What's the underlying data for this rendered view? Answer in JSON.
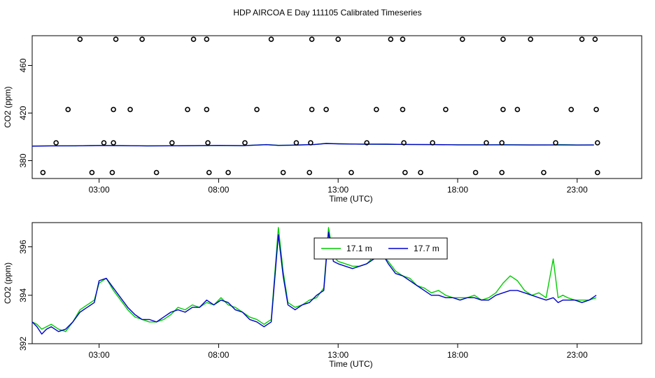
{
  "title": "HDP AIRCOA E  Day 111105  Calibrated Timeseries",
  "chart_data": [
    {
      "type": "scatter+line",
      "xlabel": "Time (UTC)",
      "ylabel": "CO2 (ppm)",
      "xlim": [
        0.2,
        25.7
      ],
      "ylim": [
        365,
        485
      ],
      "xticks": [
        3,
        8,
        13,
        18,
        23
      ],
      "xtick_labels": [
        "03:00",
        "08:00",
        "13:00",
        "18:00",
        "23:00"
      ],
      "yticks": [
        380,
        420,
        460
      ],
      "ytick_labels": [
        "380",
        "420",
        "460"
      ],
      "grid": false,
      "colors": {
        "green": "#00cc00",
        "blue": "#0000cc",
        "points": "#000000"
      },
      "points": [
        [
          2.2,
          482
        ],
        [
          3.7,
          482
        ],
        [
          4.8,
          482
        ],
        [
          6.95,
          482
        ],
        [
          7.5,
          482
        ],
        [
          10.2,
          482
        ],
        [
          11.9,
          482
        ],
        [
          13.0,
          482
        ],
        [
          15.2,
          482
        ],
        [
          15.7,
          482
        ],
        [
          18.2,
          482
        ],
        [
          19.9,
          482
        ],
        [
          21.05,
          482
        ],
        [
          23.2,
          482
        ],
        [
          23.75,
          482
        ],
        [
          1.7,
          423
        ],
        [
          3.6,
          423
        ],
        [
          4.3,
          423
        ],
        [
          6.7,
          423
        ],
        [
          7.5,
          423
        ],
        [
          9.6,
          423
        ],
        [
          11.9,
          423
        ],
        [
          12.5,
          423
        ],
        [
          14.6,
          423
        ],
        [
          15.7,
          423
        ],
        [
          17.5,
          423
        ],
        [
          19.9,
          423
        ],
        [
          20.5,
          423
        ],
        [
          22.75,
          423
        ],
        [
          23.8,
          423
        ],
        [
          1.2,
          395
        ],
        [
          3.2,
          395
        ],
        [
          3.6,
          395
        ],
        [
          6.05,
          395
        ],
        [
          7.55,
          395
        ],
        [
          9.1,
          395
        ],
        [
          11.25,
          395
        ],
        [
          11.85,
          395
        ],
        [
          14.2,
          395
        ],
        [
          15.75,
          395
        ],
        [
          16.95,
          395
        ],
        [
          19.2,
          395
        ],
        [
          19.85,
          395
        ],
        [
          22.1,
          395
        ],
        [
          23.85,
          395
        ],
        [
          0.65,
          370
        ],
        [
          2.7,
          370
        ],
        [
          3.55,
          370
        ],
        [
          5.4,
          370
        ],
        [
          7.6,
          370
        ],
        [
          8.4,
          370
        ],
        [
          10.7,
          370
        ],
        [
          11.8,
          370
        ],
        [
          13.55,
          370
        ],
        [
          15.8,
          370
        ],
        [
          16.45,
          370
        ],
        [
          18.75,
          370
        ],
        [
          19.85,
          370
        ],
        [
          21.6,
          370
        ],
        [
          23.85,
          370
        ]
      ],
      "series": [
        {
          "name": "17.1 m",
          "color": "#00cc00",
          "x": [
            0.2,
            1,
            2,
            3,
            4,
            5,
            6,
            7,
            8,
            9,
            10,
            10.5,
            11,
            12,
            12.5,
            13,
            14,
            15,
            16,
            17,
            18,
            19,
            20,
            21,
            22,
            22.3,
            23,
            23.7
          ],
          "y": [
            392.3,
            392.5,
            392.4,
            392.8,
            392.6,
            392.4,
            392.5,
            392.6,
            392.7,
            392.6,
            393.5,
            392.9,
            393.0,
            393.5,
            394.5,
            394.2,
            393.9,
            393.8,
            393.6,
            393.5,
            393.3,
            393.3,
            393.4,
            393.2,
            393.3,
            393.5,
            393.2,
            393.2
          ]
        },
        {
          "name": "17.7 m",
          "color": "#0000cc",
          "x": [
            0.2,
            1,
            2,
            3,
            4,
            5,
            6,
            7,
            8,
            9,
            10,
            10.5,
            11,
            12,
            12.5,
            13,
            14,
            15,
            16,
            17,
            18,
            19,
            20,
            21,
            22,
            22.3,
            23,
            23.7
          ],
          "y": [
            392.2,
            392.4,
            392.5,
            392.7,
            392.6,
            392.4,
            392.5,
            392.6,
            392.8,
            392.6,
            393.4,
            392.8,
            393.0,
            393.6,
            394.4,
            394.1,
            393.9,
            393.8,
            393.6,
            393.5,
            393.3,
            393.3,
            393.3,
            393.2,
            393.2,
            393.2,
            393.1,
            393.2
          ]
        }
      ]
    },
    {
      "type": "line",
      "xlabel": "Time (UTC)",
      "ylabel": "CO2 (ppm)",
      "xlim": [
        0.2,
        25.7
      ],
      "ylim": [
        392,
        397
      ],
      "xticks": [
        3,
        8,
        13,
        18,
        23
      ],
      "xtick_labels": [
        "03:00",
        "08:00",
        "13:00",
        "18:00",
        "23:00"
      ],
      "yticks": [
        392,
        394,
        396
      ],
      "ytick_labels": [
        "392",
        "394",
        "396"
      ],
      "grid": false,
      "legend": {
        "placement": "top-center"
      },
      "series": [
        {
          "name": "17.1 m",
          "color": "#00cc00",
          "x": [
            0.2,
            0.4,
            0.6,
            0.8,
            1.0,
            1.3,
            1.6,
            1.9,
            2.2,
            2.5,
            2.8,
            3.0,
            3.3,
            3.6,
            3.9,
            4.2,
            4.5,
            4.8,
            5.1,
            5.4,
            5.7,
            6.0,
            6.3,
            6.6,
            6.9,
            7.2,
            7.5,
            7.8,
            8.1,
            8.4,
            8.7,
            9.0,
            9.3,
            9.6,
            9.9,
            10.2,
            10.5,
            10.7,
            10.9,
            11.2,
            11.5,
            11.8,
            12.1,
            12.4,
            12.6,
            12.8,
            13.0,
            13.3,
            13.6,
            13.9,
            14.2,
            14.5,
            14.8,
            15.1,
            15.4,
            15.7,
            16.0,
            16.3,
            16.6,
            16.9,
            17.2,
            17.5,
            17.8,
            18.1,
            18.4,
            18.7,
            19.0,
            19.3,
            19.6,
            19.9,
            20.2,
            20.5,
            20.8,
            21.1,
            21.4,
            21.7,
            22.0,
            22.2,
            22.4,
            22.6,
            22.9,
            23.2,
            23.5,
            23.8
          ],
          "y": [
            392.9,
            392.8,
            392.6,
            392.7,
            392.8,
            392.6,
            392.5,
            392.9,
            393.4,
            393.6,
            393.8,
            394.5,
            394.7,
            394.2,
            393.8,
            393.4,
            393.1,
            393.0,
            392.9,
            392.9,
            393.0,
            393.2,
            393.5,
            393.4,
            393.6,
            393.5,
            393.7,
            393.6,
            393.9,
            393.6,
            393.5,
            393.3,
            393.1,
            393.0,
            392.8,
            393.0,
            396.8,
            395.0,
            393.7,
            393.5,
            393.6,
            393.8,
            393.9,
            394.3,
            396.8,
            395.6,
            395.4,
            395.3,
            395.2,
            395.2,
            395.3,
            395.6,
            395.7,
            395.4,
            395.0,
            394.8,
            394.7,
            394.4,
            394.3,
            394.1,
            394.2,
            394.0,
            393.9,
            393.9,
            393.9,
            394.0,
            393.8,
            393.9,
            394.1,
            394.5,
            394.8,
            394.6,
            394.2,
            394.0,
            394.1,
            393.9,
            395.5,
            393.9,
            394.0,
            393.9,
            393.8,
            393.8,
            393.8,
            393.9
          ]
        },
        {
          "name": "17.7 m",
          "color": "#0000cc",
          "x": [
            0.2,
            0.4,
            0.6,
            0.8,
            1.0,
            1.3,
            1.6,
            1.9,
            2.2,
            2.5,
            2.8,
            3.0,
            3.3,
            3.6,
            3.9,
            4.2,
            4.5,
            4.8,
            5.1,
            5.4,
            5.7,
            6.0,
            6.3,
            6.6,
            6.9,
            7.2,
            7.5,
            7.8,
            8.1,
            8.4,
            8.7,
            9.0,
            9.3,
            9.6,
            9.9,
            10.2,
            10.5,
            10.7,
            10.9,
            11.2,
            11.5,
            11.8,
            12.1,
            12.4,
            12.6,
            12.8,
            13.0,
            13.3,
            13.6,
            13.9,
            14.2,
            14.5,
            14.8,
            15.1,
            15.4,
            15.7,
            16.0,
            16.3,
            16.6,
            16.9,
            17.2,
            17.5,
            17.8,
            18.1,
            18.4,
            18.7,
            19.0,
            19.3,
            19.6,
            19.9,
            20.2,
            20.5,
            20.8,
            21.1,
            21.4,
            21.7,
            22.0,
            22.2,
            22.4,
            22.6,
            22.9,
            23.2,
            23.5,
            23.8
          ],
          "y": [
            392.9,
            392.7,
            392.4,
            392.6,
            392.7,
            392.5,
            392.6,
            392.9,
            393.3,
            393.5,
            393.7,
            394.6,
            394.7,
            394.3,
            393.9,
            393.5,
            393.2,
            393.0,
            393.0,
            392.9,
            393.1,
            393.3,
            393.4,
            393.3,
            393.5,
            393.5,
            393.8,
            393.6,
            393.8,
            393.7,
            393.4,
            393.3,
            393.0,
            392.9,
            392.7,
            392.9,
            396.5,
            394.8,
            393.6,
            393.4,
            393.6,
            393.7,
            394.0,
            394.2,
            396.6,
            395.4,
            395.3,
            395.2,
            395.1,
            395.2,
            395.3,
            395.5,
            395.8,
            395.3,
            394.9,
            394.8,
            394.6,
            394.4,
            394.2,
            394.0,
            394.0,
            393.9,
            393.9,
            393.8,
            393.9,
            393.9,
            393.8,
            393.8,
            394.0,
            394.1,
            394.2,
            394.2,
            394.1,
            394.0,
            393.9,
            393.8,
            393.9,
            393.7,
            393.8,
            393.8,
            393.8,
            393.7,
            393.8,
            394.0
          ]
        }
      ]
    }
  ]
}
